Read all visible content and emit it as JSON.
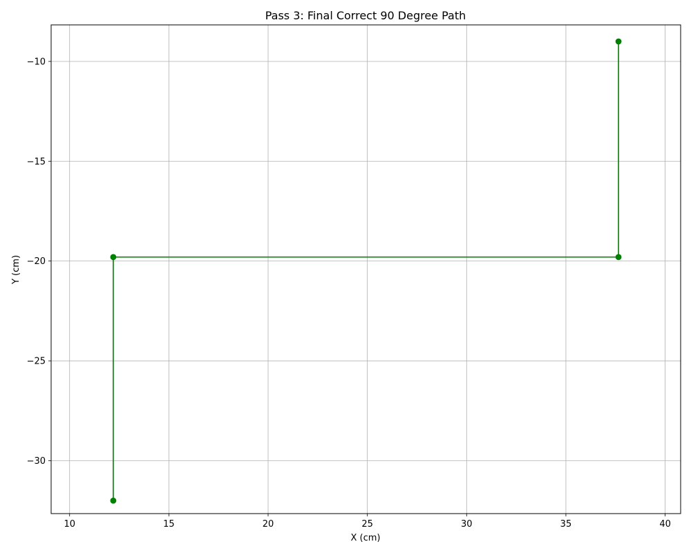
{
  "chart_data": {
    "type": "line",
    "title": "Pass 3: Final Correct 90 Degree Path",
    "xlabel": "X (cm)",
    "ylabel": "Y (cm)",
    "xlim": [
      9.07,
      40.78
    ],
    "ylim": [
      -32.65,
      -8.17
    ],
    "x_ticks": [
      10,
      15,
      20,
      25,
      30,
      35,
      40
    ],
    "y_ticks": [
      -10,
      -15,
      -20,
      -25,
      -30
    ],
    "x_tick_labels": [
      "10",
      "15",
      "20",
      "25",
      "30",
      "35",
      "40"
    ],
    "y_tick_labels": [
      "−10",
      "−15",
      "−20",
      "−25",
      "−30"
    ],
    "grid": true,
    "legend": "none",
    "series": [
      {
        "color": "#008000",
        "marker": "circle",
        "x": [
          12.2,
          12.2,
          37.65,
          37.65
        ],
        "y": [
          -32.0,
          -19.8,
          -19.8,
          -9.0
        ]
      }
    ]
  },
  "colors": {
    "grid": "#b0b0b0",
    "axes": "#000000",
    "background": "#ffffff"
  }
}
